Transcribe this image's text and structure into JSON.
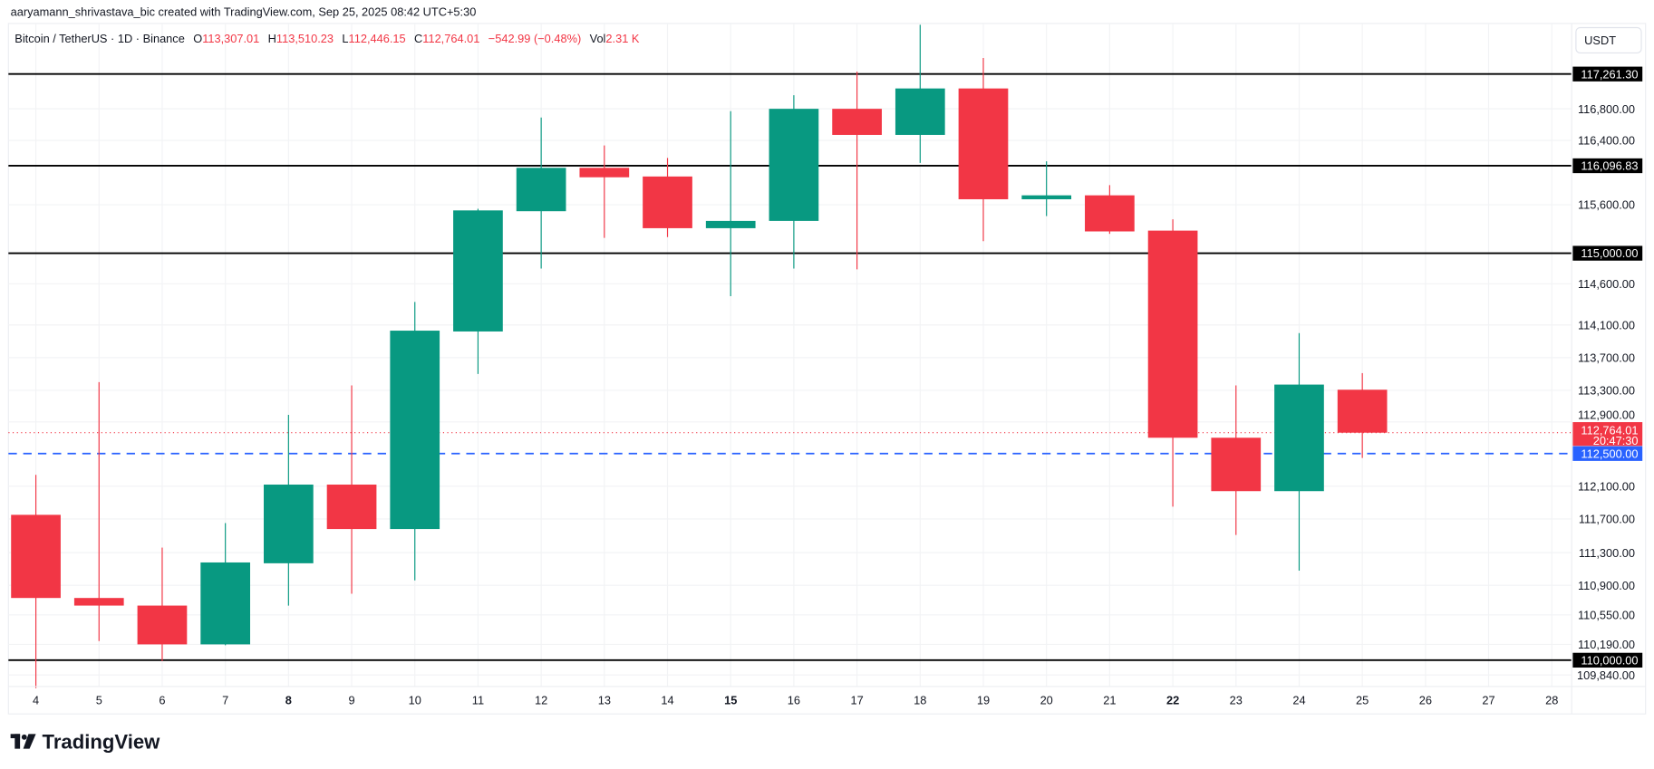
{
  "attribution": "aaryamann_shrivastava_bic created with TradingView.com, Sep 25, 2025 08:42 UTC+5:30",
  "legend": {
    "symbol": "Bitcoin / TetherUS · 1D · Binance",
    "o_label": "O",
    "o": "113,307.01",
    "h_label": "H",
    "h": "113,510.23",
    "l_label": "L",
    "l": "112,446.15",
    "c_label": "C",
    "c": "112,764.01",
    "change": "−542.99 (−0.48%)",
    "vol_label": "Vol",
    "vol": "2.31 K"
  },
  "currency_button": "USDT",
  "logo_text": "TradingView",
  "colors": {
    "up": "#089981",
    "down": "#F23645",
    "blue": "#2962FF",
    "level": "#000000"
  },
  "chart_data": {
    "type": "candlestick",
    "xlabel": "",
    "ylabel": "",
    "ylim": [
      109700,
      117900
    ],
    "grid": true,
    "x_ticks": [
      "4",
      "5",
      "6",
      "7",
      "8",
      "9",
      "10",
      "11",
      "12",
      "13",
      "14",
      "15",
      "16",
      "17",
      "18",
      "19",
      "20",
      "21",
      "22",
      "23",
      "24",
      "25",
      "26",
      "27",
      "28"
    ],
    "x_ticks_bold": [
      "8",
      "15",
      "22"
    ],
    "y_ticks": [
      "116,800.00",
      "116,400.00",
      "115,600.00",
      "114,600.00",
      "114,100.00",
      "113,700.00",
      "113,300.00",
      "112,900.00",
      "112,100.00",
      "111,700.00",
      "111,300.00",
      "110,900.00",
      "110,550.00",
      "110,190.00",
      "109,840.00"
    ],
    "candles": [
      {
        "day": "4",
        "o": 111750,
        "h": 112240,
        "l": 109670,
        "c": 110750
      },
      {
        "day": "5",
        "o": 110750,
        "h": 113400,
        "l": 110230,
        "c": 110660
      },
      {
        "day": "6",
        "o": 110660,
        "h": 111360,
        "l": 109990,
        "c": 110190
      },
      {
        "day": "7",
        "o": 110190,
        "h": 111650,
        "l": 110180,
        "c": 111180
      },
      {
        "day": "8",
        "o": 111170,
        "h": 112990,
        "l": 110660,
        "c": 112120
      },
      {
        "day": "9",
        "o": 112120,
        "h": 113360,
        "l": 110800,
        "c": 111580
      },
      {
        "day": "10",
        "o": 111580,
        "h": 114380,
        "l": 110960,
        "c": 114030
      },
      {
        "day": "11",
        "o": 114020,
        "h": 115550,
        "l": 113500,
        "c": 115530
      },
      {
        "day": "12",
        "o": 115520,
        "h": 116690,
        "l": 114800,
        "c": 116070
      },
      {
        "day": "13",
        "o": 116070,
        "h": 116340,
        "l": 115190,
        "c": 115950
      },
      {
        "day": "14",
        "o": 115960,
        "h": 116190,
        "l": 115200,
        "c": 115310
      },
      {
        "day": "15",
        "o": 115310,
        "h": 116770,
        "l": 114450,
        "c": 115400
      },
      {
        "day": "16",
        "o": 115400,
        "h": 116980,
        "l": 114800,
        "c": 116800
      },
      {
        "day": "17",
        "o": 116800,
        "h": 117290,
        "l": 114790,
        "c": 116470
      },
      {
        "day": "18",
        "o": 116470,
        "h": 117870,
        "l": 116130,
        "c": 117070
      },
      {
        "day": "19",
        "o": 117070,
        "h": 117460,
        "l": 115150,
        "c": 115670
      },
      {
        "day": "20",
        "o": 115670,
        "h": 116150,
        "l": 115460,
        "c": 115720
      },
      {
        "day": "21",
        "o": 115720,
        "h": 115850,
        "l": 115240,
        "c": 115270
      },
      {
        "day": "22",
        "o": 115280,
        "h": 115420,
        "l": 111850,
        "c": 112700
      },
      {
        "day": "23",
        "o": 112700,
        "h": 113360,
        "l": 111510,
        "c": 112040
      },
      {
        "day": "24",
        "o": 112040,
        "h": 114000,
        "l": 111080,
        "c": 113370
      },
      {
        "day": "25",
        "o": 113307.01,
        "h": 113510.23,
        "l": 112446.15,
        "c": 112764.01
      }
    ],
    "horizontal_levels": [
      {
        "price": 117261.3,
        "label": "117,261.30",
        "style": "solid-black"
      },
      {
        "price": 116096.83,
        "label": "116,096.83",
        "style": "solid-black"
      },
      {
        "price": 115000.0,
        "label": "115,000.00",
        "style": "solid-black"
      },
      {
        "price": 110000.0,
        "label": "110,000.00",
        "style": "solid-black"
      },
      {
        "price": 112500.0,
        "label": "112,500.00",
        "style": "dashed-blue"
      }
    ],
    "last_price": {
      "price": 112764.01,
      "label": "112,764.01",
      "countdown": "20:47:30"
    }
  }
}
